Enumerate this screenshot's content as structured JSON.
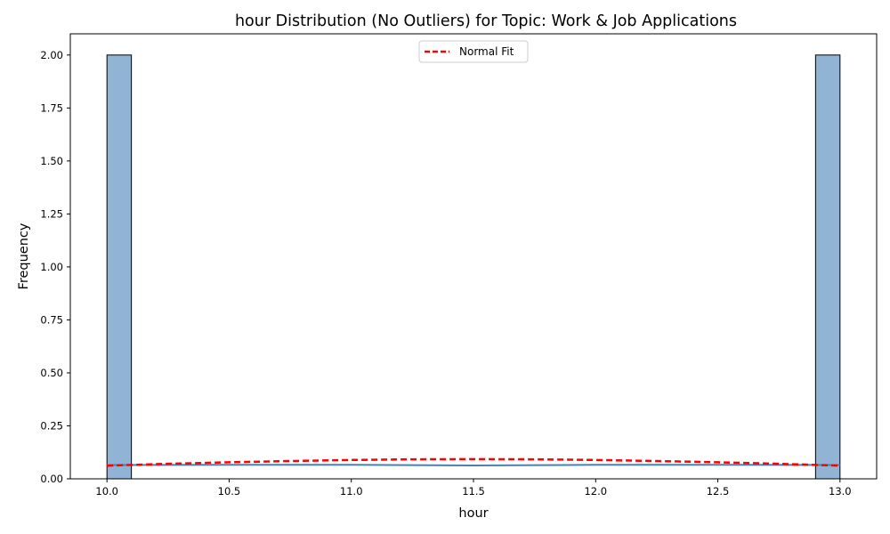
{
  "chart_data": {
    "type": "bar",
    "title": "hour Distribution (No Outliers) for Topic: Work & Job Applications",
    "xlabel": "hour",
    "ylabel": "Frequency",
    "xlim": [
      9.85,
      13.15
    ],
    "ylim": [
      0,
      2.1
    ],
    "x_ticks": [
      10.0,
      10.5,
      11.0,
      11.5,
      12.0,
      12.5,
      13.0
    ],
    "y_ticks": [
      0.0,
      0.25,
      0.5,
      0.75,
      1.0,
      1.25,
      1.5,
      1.75,
      2.0
    ],
    "x_tick_labels": [
      "10.0",
      "10.5",
      "11.0",
      "11.5",
      "12.0",
      "12.5",
      "13.0"
    ],
    "y_tick_labels": [
      "0.00",
      "0.25",
      "0.50",
      "0.75",
      "1.00",
      "1.25",
      "1.50",
      "1.75",
      "2.00"
    ],
    "bins": [
      {
        "x0": 10.0,
        "x1": 10.1,
        "count": 2
      },
      {
        "x0": 12.9,
        "x1": 13.0,
        "count": 2
      }
    ],
    "kde_curve": {
      "x": [
        10.0,
        10.5,
        11.0,
        11.5,
        12.0,
        12.5,
        13.0
      ],
      "y": [
        0.065,
        0.066,
        0.066,
        0.063,
        0.066,
        0.066,
        0.065
      ]
    },
    "normal_fit": {
      "name": "Normal Fit",
      "x": [
        10.0,
        10.25,
        10.5,
        10.75,
        11.0,
        11.25,
        11.5,
        11.75,
        12.0,
        12.25,
        12.5,
        12.75,
        13.0
      ],
      "y": [
        0.062,
        0.071,
        0.078,
        0.084,
        0.089,
        0.092,
        0.093,
        0.092,
        0.089,
        0.084,
        0.078,
        0.071,
        0.062
      ]
    },
    "legend_position": "top-center",
    "grid": false,
    "colors": {
      "bar_fill": "#92b4d4",
      "bar_edge": "#000000",
      "kde": "#4a7fb5",
      "normal_fit": "#ff0000"
    }
  }
}
